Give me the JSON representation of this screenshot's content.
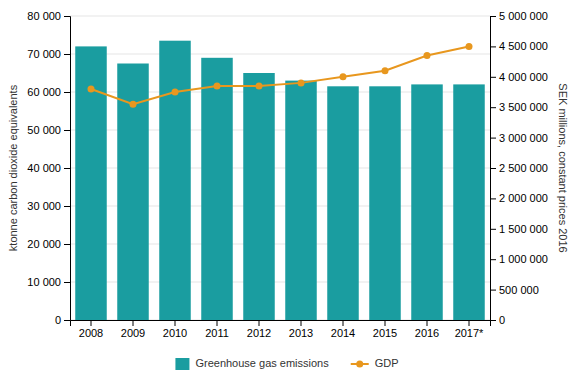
{
  "chart_data": {
    "type": "bar",
    "categories": [
      "2008",
      "2009",
      "2010",
      "2011",
      "2012",
      "2013",
      "2014",
      "2015",
      "2016",
      "2017*"
    ],
    "series": [
      {
        "name": "Greenhouse gas emissions",
        "type": "bar",
        "color": "#1a9da0",
        "values": [
          72000,
          67500,
          73500,
          69000,
          65000,
          63000,
          61500,
          61500,
          62000,
          62000
        ]
      },
      {
        "name": "GDP",
        "type": "line",
        "color": "#e8971e",
        "marker": "circle",
        "axis": "y2",
        "values": [
          3800000,
          3550000,
          3750000,
          3850000,
          3850000,
          3900000,
          4000000,
          4100000,
          4350000,
          4500000
        ]
      }
    ],
    "ylabel": "ktonne carbon dioxide equivalents",
    "y2label": "SEK millions, constant prices 2016",
    "ylim": [
      0,
      80000
    ],
    "yticks": [
      0,
      {
        "value": 10000,
        "label": "10 000"
      },
      {
        "value": 20000,
        "label": "20 000"
      },
      {
        "value": 30000,
        "label": "30 000"
      },
      {
        "value": 40000,
        "label": "40 000"
      },
      {
        "value": 50000,
        "label": "50 000"
      },
      {
        "value": 60000,
        "label": "60 000"
      },
      {
        "value": 70000,
        "label": "70 000"
      },
      {
        "value": 80000,
        "label": "80 000"
      }
    ],
    "y2lim": [
      0,
      5000000
    ],
    "y2ticks": [
      0,
      {
        "value": 500000,
        "label": "500 000"
      },
      {
        "value": 1000000,
        "label": "1 000 000"
      },
      {
        "value": 1500000,
        "label": "1 500 000"
      },
      {
        "value": 2000000,
        "label": "2 000 000"
      },
      {
        "value": 2500000,
        "label": "2 500 000"
      },
      {
        "value": 3000000,
        "label": "3 000 000"
      },
      {
        "value": 3500000,
        "label": "3 500 000"
      },
      {
        "value": 4000000,
        "label": "4 000 000"
      },
      {
        "value": 4500000,
        "label": "4 500 000"
      },
      {
        "value": 5000000,
        "label": "5 000 000"
      }
    ],
    "grid": true,
    "legend": "bottom"
  }
}
